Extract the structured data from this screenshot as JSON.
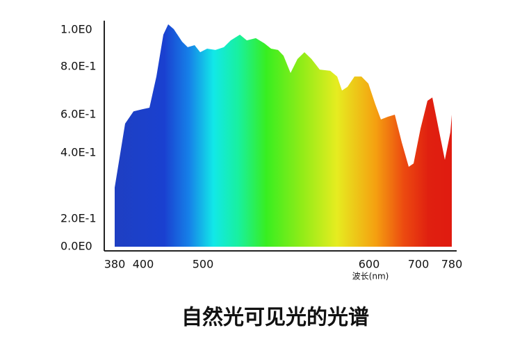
{
  "chart_data": {
    "type": "area",
    "title": "自然光可见光的光谱",
    "x_label": "波长(nm)",
    "x": [
      380,
      387.3,
      393.2,
      399.5,
      410.5,
      422.1,
      433.7,
      441.9,
      451.2,
      465.1,
      474.4,
      486,
      495.3,
      502.5,
      507.5,
      512.6,
      516.7,
      522.2,
      526.4,
      531.8,
      536.8,
      541,
      545.2,
      548.5,
      552.7,
      556.9,
      561.1,
      565.3,
      570.3,
      576.6,
      580.8,
      583.7,
      587,
      591.2,
      595.4,
      599.6,
      612.7,
      624,
      638,
      652.1,
      666.2,
      680.3,
      690.1,
      705,
      721.7,
      733.3,
      746.7,
      763.3,
      776.7,
      780
    ],
    "values": [
      0.295,
      0.553,
      0.614,
      0.623,
      0.629,
      0.759,
      0.974,
      1.03,
      1.004,
      0.936,
      0.906,
      0.917,
      0.879,
      0.898,
      0.891,
      0.906,
      0.943,
      0.974,
      0.943,
      0.955,
      0.928,
      0.898,
      0.891,
      0.86,
      0.774,
      0.842,
      0.879,
      0.842,
      0.788,
      0.783,
      0.759,
      0.701,
      0.716,
      0.759,
      0.759,
      0.73,
      0.643,
      0.575,
      0.589,
      0.6,
      0.455,
      0.358,
      0.368,
      0.527,
      0.658,
      0.672,
      0.545,
      0.379,
      0.509,
      0.6
    ],
    "xlim": [
      380,
      780
    ],
    "ylim": [
      0,
      1.05
    ],
    "xticks": [
      380,
      400,
      500,
      600,
      700,
      780
    ],
    "yticks": [
      {
        "value": 0,
        "label": "0.0E0"
      },
      {
        "value": 0.2,
        "label": "2.0E-1"
      },
      {
        "value": 0.4,
        "label": "4.0E-1"
      },
      {
        "value": 0.6,
        "label": "6.0E-1"
      },
      {
        "value": 0.8,
        "label": "8.0E-1"
      },
      {
        "value": 1.0,
        "label": "1.0E0"
      }
    ]
  }
}
